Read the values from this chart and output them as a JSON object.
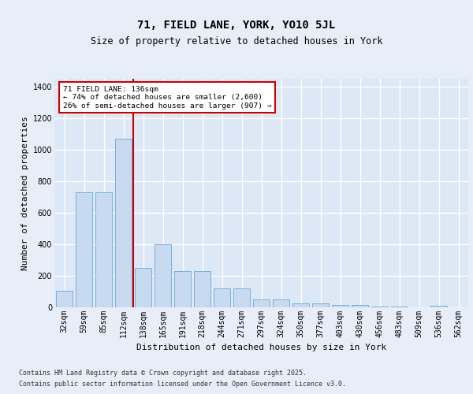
{
  "title": "71, FIELD LANE, YORK, YO10 5JL",
  "subtitle": "Size of property relative to detached houses in York",
  "xlabel": "Distribution of detached houses by size in York",
  "ylabel": "Number of detached properties",
  "categories": [
    "32sqm",
    "59sqm",
    "85sqm",
    "112sqm",
    "138sqm",
    "165sqm",
    "191sqm",
    "218sqm",
    "244sqm",
    "271sqm",
    "297sqm",
    "324sqm",
    "350sqm",
    "377sqm",
    "403sqm",
    "430sqm",
    "456sqm",
    "483sqm",
    "509sqm",
    "536sqm",
    "562sqm"
  ],
  "values": [
    105,
    730,
    730,
    1070,
    250,
    400,
    230,
    230,
    120,
    120,
    48,
    48,
    25,
    25,
    17,
    17,
    5,
    5,
    0,
    12,
    0
  ],
  "bar_color": "#c8daf0",
  "bar_edge_color": "#6aaad4",
  "vline_color": "#cc0000",
  "vline_pos": 3.5,
  "annotation_title": "71 FIELD LANE: 136sqm",
  "annotation_line1": "← 74% of detached houses are smaller (2,600)",
  "annotation_line2": "26% of semi-detached houses are larger (907) →",
  "annotation_box_color": "#cc0000",
  "ylim": [
    0,
    1450
  ],
  "yticks": [
    0,
    200,
    400,
    600,
    800,
    1000,
    1200,
    1400
  ],
  "fig_bg_color": "#e8eef8",
  "plot_bg_color": "#dce8f5",
  "grid_color": "#ffffff",
  "title_fontsize": 10,
  "subtitle_fontsize": 8.5,
  "axis_label_fontsize": 8,
  "tick_fontsize": 7,
  "footer_fontsize": 6,
  "footer_line1": "Contains HM Land Registry data © Crown copyright and database right 2025.",
  "footer_line2": "Contains public sector information licensed under the Open Government Licence v3.0."
}
